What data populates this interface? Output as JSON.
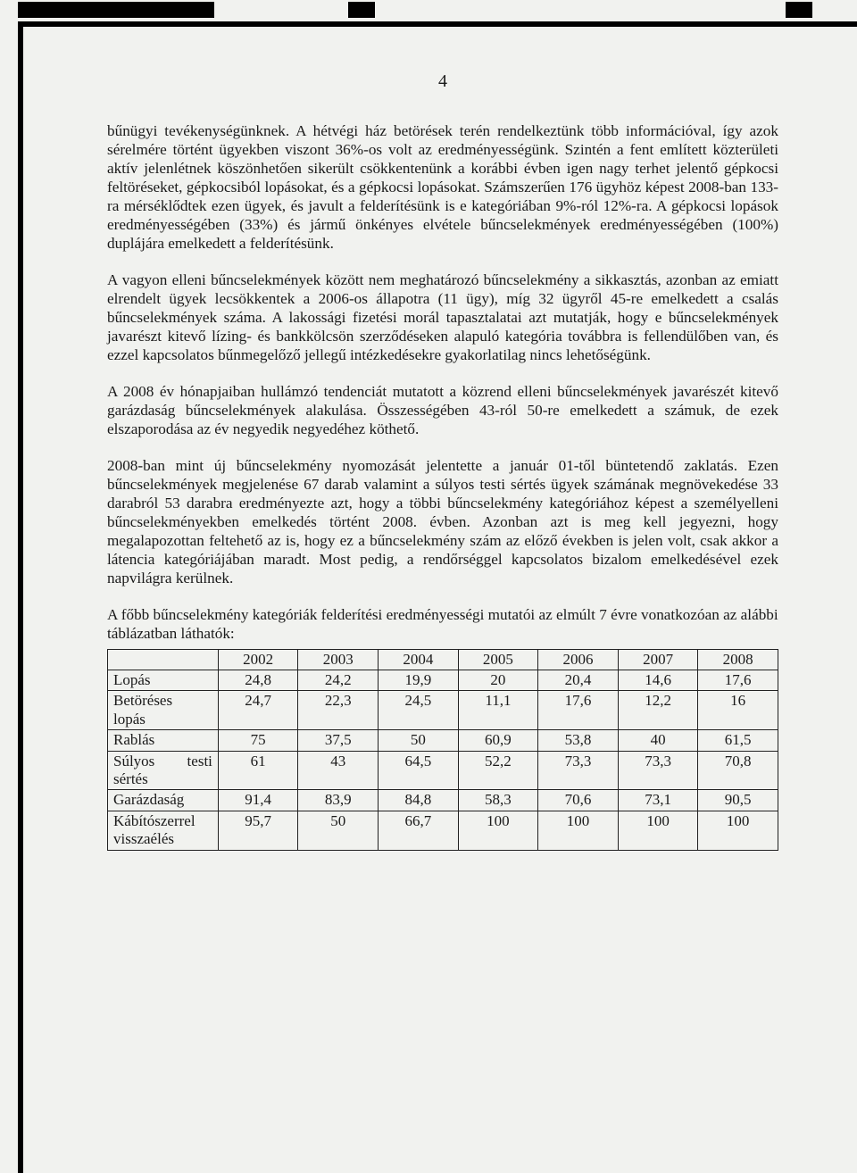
{
  "page_number": "4",
  "paragraphs": {
    "p1": "bűnügyi tevékenységünknek. A hétvégi ház betörések terén rendelkeztünk több információval, így azok sérelmére történt ügyekben viszont 36%-os volt az eredményességünk. Szintén a fent említett közterületi aktív jelenlétnek köszönhetően sikerült csökkentenünk a korábbi évben igen nagy terhet jelentő gépkocsi feltöréseket, gépkocsiból lopásokat, és a gépkocsi lopásokat. Számszerűen 176 ügyhöz képest 2008-ban 133-ra mérséklődtek ezen ügyek, és javult a felderítésünk is e kategóriában 9%-ról 12%-ra. A gépkocsi lopások eredményességében (33%) és jármű önkényes elvétele bűncselekmények eredményességében (100%) duplájára emelkedett a felderítésünk.",
    "p2": "A vagyon elleni bűncselekmények között nem meghatározó bűncselekmény a sikkasztás, azonban az emiatt elrendelt ügyek lecsökkentek a 2006-os állapotra (11 ügy), míg 32 ügyről 45-re emelkedett a csalás bűncselekmények száma. A lakossági fizetési morál tapasztalatai azt mutatják, hogy e bűncselekmények javarészt kitevő lízing- és bankkölcsön szerződéseken alapuló kategória továbbra is fellendülőben van, és ezzel kapcsolatos bűnmegelőző jellegű intézkedésekre gyakorlatilag nincs lehetőségünk.",
    "p3": "A 2008 év hónapjaiban hullámzó tendenciát mutatott a közrend elleni bűncselekmények javarészét kitevő garázdaság bűncselekmények alakulása. Összességében 43-ról 50-re emelkedett a számuk, de ezek elszaporodása az év negyedik negyedéhez köthető.",
    "p4": "2008-ban mint új bűncselekmény nyomozását jelentette a január 01-től büntetendő zaklatás. Ezen bűncselekmények megjelenése 67 darab valamint a súlyos testi sértés ügyek számának megnövekedése 33 darabról 53 darabra eredményezte azt, hogy a többi bűncselekmény kategóriához képest a személyelleni bűncselekményekben emelkedés történt 2008. évben. Azonban azt is meg kell jegyezni, hogy megalapozottan feltehető az is, hogy ez a bűncselekmény szám az előző években is jelen volt, csak akkor a látencia kategóriájában maradt. Most pedig, a rendőrséggel kapcsolatos bizalom emelkedésével ezek napvilágra kerülnek.",
    "intro": "A főbb bűncselekmény kategóriák felderítési eredményességi mutatói az elmúlt 7 évre vonatkozóan az alábbi táblázatban láthatók:"
  },
  "table": {
    "columns": [
      "",
      "2002",
      "2003",
      "2004",
      "2005",
      "2006",
      "2007",
      "2008"
    ],
    "rows": [
      {
        "label": "Lopás",
        "cells": [
          "24,8",
          "24,2",
          "19,9",
          "20",
          "20,4",
          "14,6",
          "17,6"
        ]
      },
      {
        "label": "Betöréses lopás",
        "cells": [
          "24,7",
          "22,3",
          "24,5",
          "11,1",
          "17,6",
          "12,2",
          "16"
        ]
      },
      {
        "label": "Rablás",
        "cells": [
          "75",
          "37,5",
          "50",
          "60,9",
          "53,8",
          "40",
          "61,5"
        ]
      },
      {
        "label": "Súlyos testi sértés",
        "cells": [
          "61",
          "43",
          "64,5",
          "52,2",
          "73,3",
          "73,3",
          "70,8"
        ]
      },
      {
        "label": "Garázdaság",
        "cells": [
          "91,4",
          "83,9",
          "84,8",
          "58,3",
          "70,6",
          "73,1",
          "90,5"
        ]
      },
      {
        "label": "Kábítószerrel visszaélés",
        "cells": [
          "95,7",
          "50",
          "66,7",
          "100",
          "100",
          "100",
          "100"
        ]
      }
    ]
  }
}
